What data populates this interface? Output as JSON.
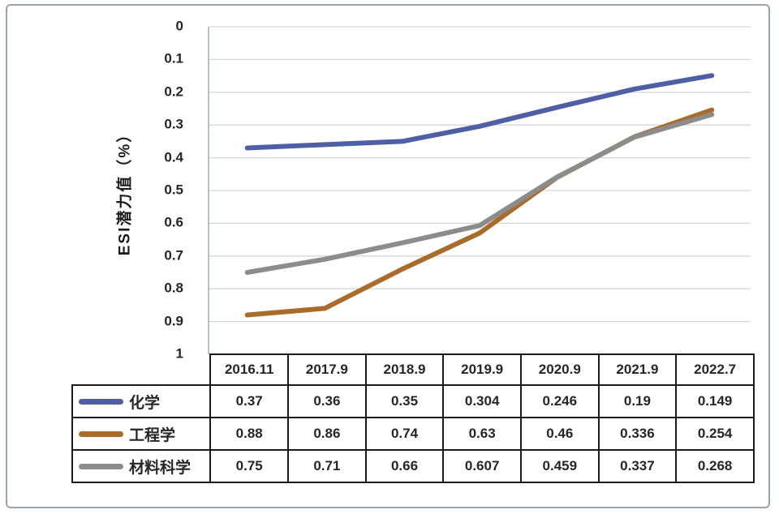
{
  "chart_data": {
    "type": "line",
    "title": "",
    "xlabel": "",
    "ylabel": "ESI潜力值（%）",
    "categories": [
      "2016.11",
      "2017.9",
      "2018.9",
      "2019.9",
      "2020.9",
      "2021.9",
      "2022.7"
    ],
    "series": [
      {
        "key": "chemistry",
        "name": "化学",
        "color": "#4e60a3",
        "values": [
          0.37,
          0.36,
          0.35,
          0.304,
          0.246,
          0.19,
          0.149
        ]
      },
      {
        "key": "engineering",
        "name": "工程学",
        "color": "#a96c2b",
        "values": [
          0.88,
          0.86,
          0.74,
          0.63,
          0.46,
          0.336,
          0.254
        ]
      },
      {
        "key": "materials-science",
        "name": "材料科学",
        "color": "#8c8c8c",
        "values": [
          0.75,
          0.71,
          0.66,
          0.607,
          0.459,
          0.337,
          0.268
        ]
      }
    ],
    "y_axis": {
      "min": 0,
      "max": 1,
      "step": 0.1,
      "inverted": true,
      "tick_labels": [
        "0",
        "0.1",
        "0.2",
        "0.3",
        "0.4",
        "0.5",
        "0.6",
        "0.7",
        "0.8",
        "0.9",
        "1"
      ]
    },
    "grid": true,
    "legend_position": "table-left-column"
  }
}
